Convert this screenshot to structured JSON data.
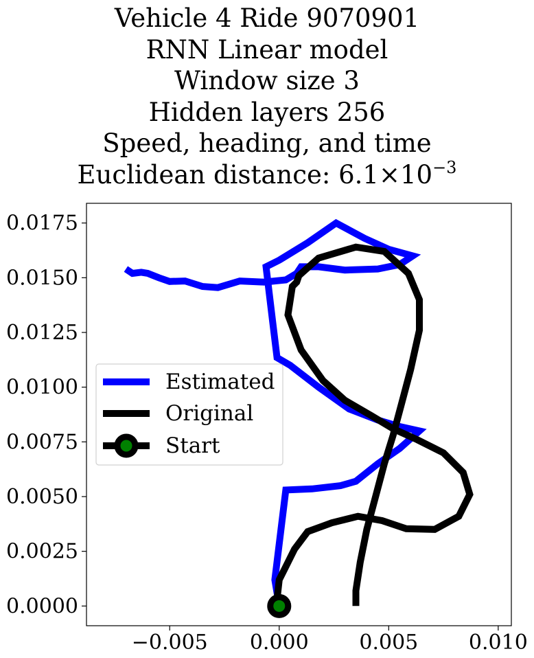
{
  "title_lines": [
    "Vehicle 4 Ride 9070901",
    "RNN Linear model",
    "Window size 3",
    "Hidden layers 256",
    "Speed, heading, and time"
  ],
  "title_distance": {
    "prefix": "Euclidean distance: ",
    "mantissa": "6.1",
    "times": "×",
    "base": "10",
    "exponent": "−3"
  },
  "chart_data": {
    "type": "line",
    "title": "Vehicle 4 Ride 9070901 / RNN Linear model / Window size 3 / Hidden layers 256 / Speed, heading, and time / Euclidean distance: 6.1×10^-3",
    "xlabel": "",
    "ylabel": "",
    "xlim": [
      -0.0088,
      0.0106
    ],
    "ylim": [
      -0.0009,
      0.0184
    ],
    "x_ticks": [
      -0.005,
      0.0,
      0.005,
      0.01
    ],
    "x_tick_labels": [
      "−0.005",
      "0.000",
      "0.005",
      "0.010"
    ],
    "y_ticks": [
      0.0,
      0.0025,
      0.005,
      0.0075,
      0.01,
      0.0125,
      0.015,
      0.0175
    ],
    "y_tick_labels": [
      "0.0000",
      "0.0025",
      "0.0050",
      "0.0075",
      "0.0100",
      "0.0125",
      "0.0150",
      "0.0175"
    ],
    "grid": false,
    "legend": {
      "location": "center-left",
      "entries": [
        "Estimated",
        "Original",
        "Start"
      ]
    },
    "series": [
      {
        "name": "Estimated",
        "color": "#0000ff",
        "points": [
          [
            0.0,
            0.0
          ],
          [
            -0.0002,
            0.0012
          ],
          [
            0.0003,
            0.0053
          ],
          [
            0.0015,
            0.00535
          ],
          [
            0.0028,
            0.0055
          ],
          [
            0.0035,
            0.0057
          ],
          [
            0.0045,
            0.0065
          ],
          [
            0.0055,
            0.0072
          ],
          [
            0.0064,
            0.008
          ],
          [
            0.0055,
            0.0082
          ],
          [
            0.0045,
            0.0085
          ],
          [
            0.0032,
            0.009
          ],
          [
            0.0018,
            0.01
          ],
          [
            0.0005,
            0.011
          ],
          [
            -0.0001,
            0.01135
          ],
          [
            -0.0003,
            0.013
          ],
          [
            -0.0006,
            0.0155
          ],
          [
            0.0,
            0.0158
          ],
          [
            0.0013,
            0.0166
          ],
          [
            0.0026,
            0.0175
          ],
          [
            0.0039,
            0.0168
          ],
          [
            0.005,
            0.0163
          ],
          [
            0.0061,
            0.016
          ],
          [
            0.0055,
            0.0156
          ],
          [
            0.0045,
            0.0154
          ],
          [
            0.003,
            0.01535
          ],
          [
            0.0018,
            0.0155
          ],
          [
            0.001,
            0.0155
          ],
          [
            0.0008,
            0.0152
          ],
          [
            0.0003,
            0.0149
          ],
          [
            -0.0007,
            0.0148
          ],
          [
            -0.0018,
            0.01485
          ],
          [
            -0.0028,
            0.01455
          ],
          [
            -0.0035,
            0.0146
          ],
          [
            -0.0043,
            0.01485
          ],
          [
            -0.005,
            0.01483
          ],
          [
            -0.0055,
            0.015
          ],
          [
            -0.006,
            0.0152
          ],
          [
            -0.0063,
            0.01525
          ],
          [
            -0.0067,
            0.0152
          ],
          [
            -0.007,
            0.0154
          ]
        ]
      },
      {
        "name": "Original",
        "color": "#000000",
        "points": [
          [
            0.0035,
            0.0
          ],
          [
            0.0035,
            0.0007
          ],
          [
            0.0037,
            0.002
          ],
          [
            0.004,
            0.0035
          ],
          [
            0.0044,
            0.005
          ],
          [
            0.0048,
            0.0065
          ],
          [
            0.0052,
            0.0078
          ],
          [
            0.0056,
            0.0093
          ],
          [
            0.006,
            0.0108
          ],
          [
            0.0064,
            0.0126
          ],
          [
            0.0064,
            0.014
          ],
          [
            0.0059,
            0.0152
          ],
          [
            0.0048,
            0.0162
          ],
          [
            0.0035,
            0.0164
          ],
          [
            0.0018,
            0.0159
          ],
          [
            0.0009,
            0.0151
          ],
          [
            0.0008,
            0.0148
          ],
          [
            0.0006,
            0.0146
          ],
          [
            0.0004,
            0.0133
          ],
          [
            0.001,
            0.0117
          ],
          [
            0.002,
            0.0103
          ],
          [
            0.003,
            0.0094
          ],
          [
            0.0042,
            0.0087
          ],
          [
            0.0052,
            0.0081
          ],
          [
            0.0063,
            0.0076
          ],
          [
            0.0075,
            0.007
          ],
          [
            0.0084,
            0.0061
          ],
          [
            0.0087,
            0.0051
          ],
          [
            0.0082,
            0.0041
          ],
          [
            0.0071,
            0.0035
          ],
          [
            0.0058,
            0.00353
          ],
          [
            0.0047,
            0.0039
          ],
          [
            0.0036,
            0.0041
          ],
          [
            0.0024,
            0.0038
          ],
          [
            0.0013,
            0.0034
          ],
          [
            0.0007,
            0.0026
          ],
          [
            0.0003,
            0.0018
          ],
          [
            0.0,
            0.0012
          ],
          [
            -0.0001,
            0.0003
          ],
          [
            0.0,
            0.0
          ]
        ]
      },
      {
        "name": "Start",
        "color": "#000000",
        "marker_color": "#008000",
        "points": [
          [
            0.0,
            0.0
          ]
        ]
      }
    ]
  }
}
